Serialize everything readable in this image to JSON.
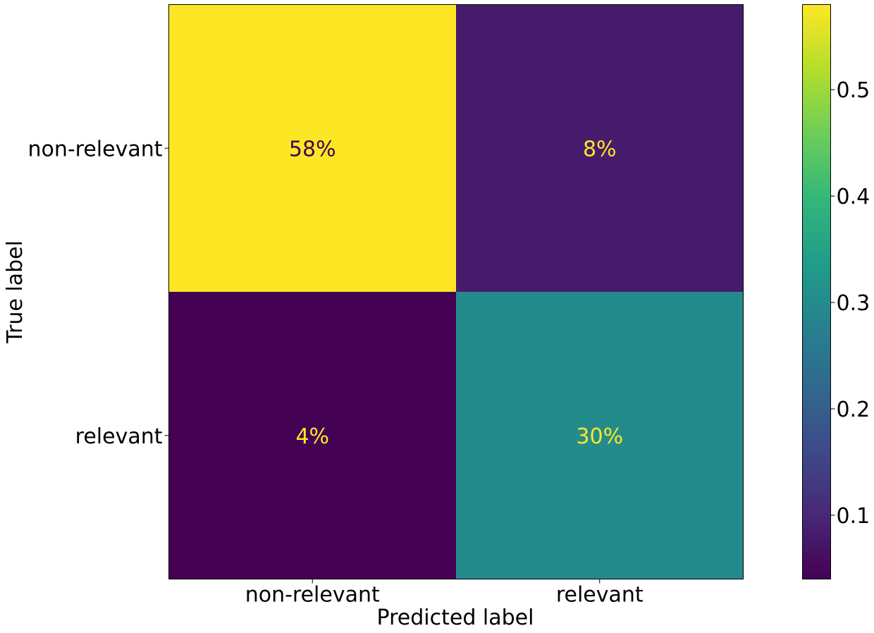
{
  "chart_data": {
    "type": "heatmap",
    "title": "",
    "xlabel": "Predicted label",
    "ylabel": "True label",
    "x_categories": [
      "non-relevant",
      "relevant"
    ],
    "y_categories": [
      "non-relevant",
      "relevant"
    ],
    "values": [
      [
        0.58,
        0.08
      ],
      [
        0.04,
        0.3
      ]
    ],
    "cell_labels": [
      [
        "58%",
        "8%"
      ],
      [
        "4%",
        "30%"
      ]
    ],
    "colormap": "viridis",
    "colorbar": {
      "vmin": 0.04,
      "vmax": 0.58,
      "ticks": [
        0.1,
        0.2,
        0.3,
        0.4,
        0.5
      ],
      "tick_labels": [
        "0.1",
        "0.2",
        "0.3",
        "0.4",
        "0.5"
      ]
    },
    "text_colors": {
      "on_light": "#440154",
      "on_dark": "#fde725"
    },
    "grid": false,
    "legend": "colorbar-right"
  }
}
